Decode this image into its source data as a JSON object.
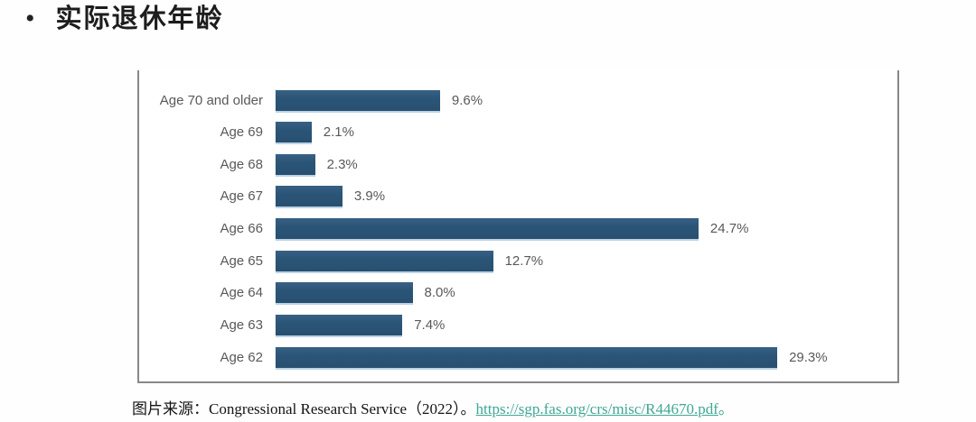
{
  "page": {
    "bullet": "•",
    "title": "实际退休年龄"
  },
  "chart_data": {
    "type": "bar",
    "orientation": "horizontal",
    "title": "",
    "xlabel": "",
    "ylabel": "",
    "categories": [
      "Age 70 and older",
      "Age 69",
      "Age 68",
      "Age 67",
      "Age 66",
      "Age 65",
      "Age 64",
      "Age 63",
      "Age 62"
    ],
    "values": [
      9.6,
      2.1,
      2.3,
      3.9,
      24.7,
      12.7,
      8.0,
      7.4,
      29.3
    ],
    "value_labels": [
      "9.6%",
      "2.1%",
      "2.3%",
      "3.9%",
      "24.7%",
      "12.7%",
      "8.0%",
      "7.4%",
      "29.3%"
    ],
    "xlim": [
      0,
      36
    ],
    "grid": false,
    "legend": false,
    "bar_color": "#2b5577"
  },
  "caption": {
    "source_label": "图片来源：Congressional Research Service（2022）。",
    "link_text": "https://sgp.fas.org/crs/misc/R44670.pdf",
    "link_suffix": "。"
  },
  "colors": {
    "bar": "#2b5577",
    "axis_label": "#595959",
    "frame_border": "#888888",
    "link": "#3fa796",
    "title_text": "#1d1d1d"
  }
}
